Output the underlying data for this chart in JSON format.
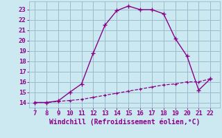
{
  "x_main": [
    7,
    8,
    9,
    10,
    11,
    12,
    13,
    14,
    15,
    16,
    17,
    18,
    19,
    20,
    21,
    22
  ],
  "y_main": [
    14.0,
    14.0,
    14.15,
    15.0,
    15.8,
    18.8,
    21.5,
    22.9,
    23.35,
    23.0,
    23.0,
    22.6,
    20.2,
    18.5,
    15.2,
    16.3
  ],
  "x_flat": [
    7,
    8,
    9,
    10,
    11,
    12,
    13,
    14,
    15,
    16,
    17,
    18,
    19,
    20,
    21,
    22
  ],
  "y_flat": [
    14.0,
    14.0,
    14.1,
    14.2,
    14.3,
    14.5,
    14.7,
    14.9,
    15.1,
    15.3,
    15.5,
    15.7,
    15.8,
    16.0,
    16.0,
    16.3
  ],
  "line_color": "#880088",
  "bg_color": "#cce8f0",
  "grid_color": "#99bbcc",
  "xlabel": "Windchill (Refroidissement éolien,°C)",
  "xlim": [
    6.5,
    22.8
  ],
  "ylim": [
    13.5,
    23.8
  ],
  "xticks": [
    7,
    8,
    9,
    10,
    11,
    12,
    13,
    14,
    15,
    16,
    17,
    18,
    19,
    20,
    21,
    22
  ],
  "yticks": [
    14,
    15,
    16,
    17,
    18,
    19,
    20,
    21,
    22,
    23
  ],
  "tick_label_fontsize": 6.5,
  "xlabel_fontsize": 7
}
